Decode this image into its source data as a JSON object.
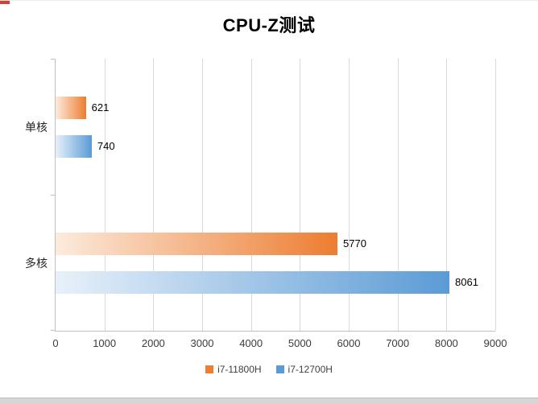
{
  "chart_data": {
    "type": "bar",
    "orientation": "horizontal",
    "title": "CPU-Z测试",
    "categories": [
      "单核",
      "多核"
    ],
    "series": [
      {
        "name": "i7-11800H",
        "color": "#ED7D31",
        "color_light": "#FCEBDD",
        "values": [
          621,
          5770
        ]
      },
      {
        "name": "i7-12700H",
        "color": "#5B9BD5",
        "color_light": "#E8F1FA",
        "values": [
          740,
          8061
        ]
      }
    ],
    "xlim": [
      0,
      9000
    ],
    "x_ticks": [
      0,
      1000,
      2000,
      3000,
      4000,
      5000,
      6000,
      7000,
      8000,
      9000
    ],
    "grid": true,
    "data_labels": true,
    "legend_position": "bottom"
  },
  "colors": {
    "gridline": "#D9D9D9",
    "axis": "#BFBFBF",
    "tick_text": "#3B3B3B",
    "title_text": "#000000",
    "artifact_red": "#E23B2E",
    "bottom_strip": "#D6D6D6"
  }
}
